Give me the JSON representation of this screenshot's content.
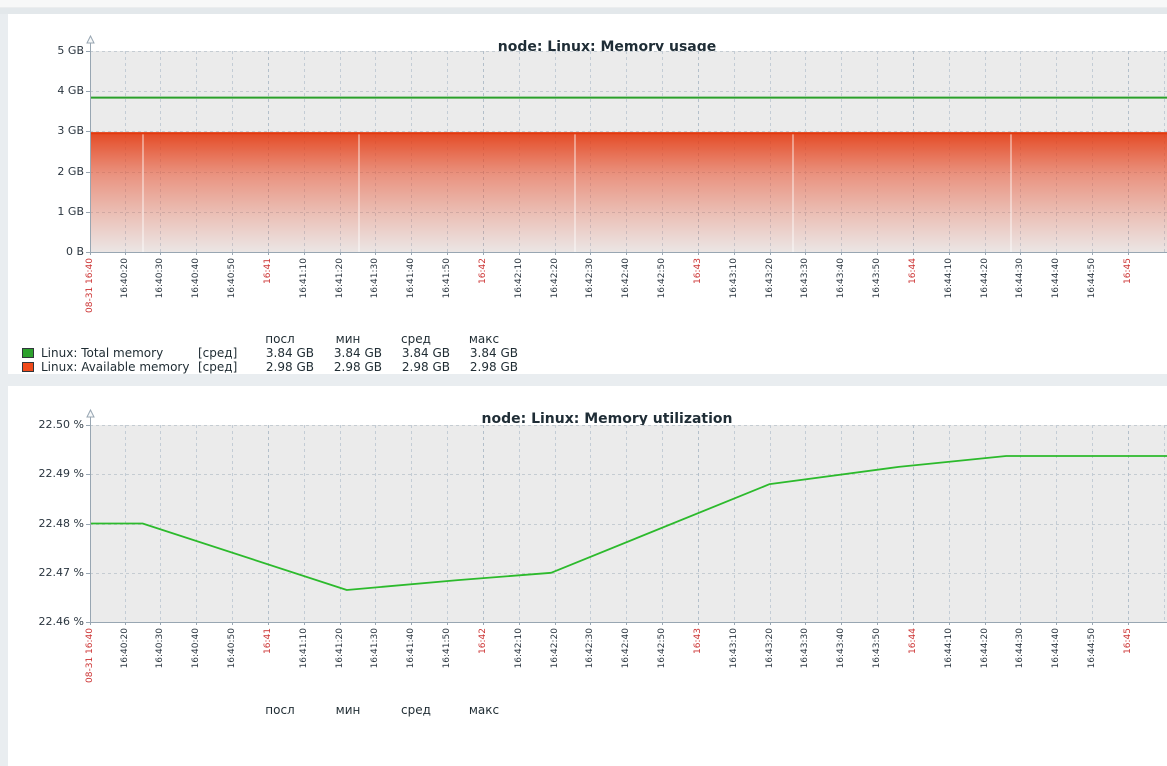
{
  "page": {
    "background": "#e9edf0",
    "panel_background": "#ffffff"
  },
  "colors": {
    "plot_background": "#ebebeb",
    "h_gridline": "#c5ccd2",
    "v_gridline": "#c3ccd5",
    "v_gridline_minute": "#b3bfca",
    "axis": "#98a6b2",
    "tick_text": "#2b3640",
    "tick_text_red": "#cc3333",
    "total_memory_green": "#2aa02a",
    "available_memory_red": "#e23a10",
    "utilization_green": "#2cba2c"
  },
  "chart_data": [
    {
      "type": "line",
      "title": "node: Linux: Memory usage",
      "y_unit": "bytes",
      "ylim_gb": [
        0,
        5
      ],
      "grid": true,
      "legend_position": "bottom",
      "y_tick_labels": [
        "5 GB",
        "4 GB",
        "3 GB",
        "2 GB",
        "1 GB",
        "0 B"
      ],
      "x_tick_labels": [
        {
          "t": "08-31 16:40",
          "red": true
        },
        {
          "t": "16:40:20",
          "red": false
        },
        {
          "t": "16:40:30",
          "red": false
        },
        {
          "t": "16:40:40",
          "red": false
        },
        {
          "t": "16:40:50",
          "red": false
        },
        {
          "t": "16:41",
          "red": true
        },
        {
          "t": "16:41:10",
          "red": false
        },
        {
          "t": "16:41:20",
          "red": false
        },
        {
          "t": "16:41:30",
          "red": false
        },
        {
          "t": "16:41:40",
          "red": false
        },
        {
          "t": "16:41:50",
          "red": false
        },
        {
          "t": "16:42",
          "red": true
        },
        {
          "t": "16:42:10",
          "red": false
        },
        {
          "t": "16:42:20",
          "red": false
        },
        {
          "t": "16:42:30",
          "red": false
        },
        {
          "t": "16:42:40",
          "red": false
        },
        {
          "t": "16:42:50",
          "red": false
        },
        {
          "t": "16:43",
          "red": true
        },
        {
          "t": "16:43:10",
          "red": false
        },
        {
          "t": "16:43:20",
          "red": false
        },
        {
          "t": "16:43:30",
          "red": false
        },
        {
          "t": "16:43:40",
          "red": false
        },
        {
          "t": "16:43:50",
          "red": false
        },
        {
          "t": "16:44",
          "red": true
        },
        {
          "t": "16:44:10",
          "red": false
        },
        {
          "t": "16:44:20",
          "red": false
        },
        {
          "t": "16:44:30",
          "red": false
        },
        {
          "t": "16:44:40",
          "red": false
        },
        {
          "t": "16:44:50",
          "red": false
        },
        {
          "t": "16:45",
          "red": true
        }
      ],
      "series": [
        {
          "name": "Linux: Total memory",
          "agg": "[сред]",
          "color": "#2aa02a",
          "style": "line",
          "constant_value_gb": 3.84
        },
        {
          "name": "Linux: Available memory",
          "agg": "[сред]",
          "color": "#e23a10",
          "style": "gradient_area",
          "constant_value_gb": 2.98
        }
      ],
      "legend": {
        "headers": [
          "посл",
          "мин",
          "сред",
          "макс"
        ],
        "rows": [
          {
            "color": "#2da12d",
            "label": "Linux: Total memory",
            "func": "[сред]",
            "values": [
              "3.84 GB",
              "3.84 GB",
              "3.84 GB",
              "3.84 GB"
            ]
          },
          {
            "color": "#ef4a1b",
            "label": "Linux: Available memory",
            "func": "[сред]",
            "values": [
              "2.98 GB",
              "2.98 GB",
              "2.98 GB",
              "2.98 GB"
            ]
          }
        ]
      }
    },
    {
      "type": "line",
      "title": "node: Linux: Memory utilization",
      "y_unit": "%",
      "ylim": [
        22.46,
        22.5
      ],
      "grid": true,
      "legend_position": "bottom",
      "y_tick_labels": [
        "22.50 %",
        "22.49 %",
        "22.48 %",
        "22.47 %",
        "22.46 %"
      ],
      "x_tick_labels": [
        {
          "t": "08-31 16:40",
          "red": true
        },
        {
          "t": "16:40:20",
          "red": false
        },
        {
          "t": "16:40:30",
          "red": false
        },
        {
          "t": "16:40:40",
          "red": false
        },
        {
          "t": "16:40:50",
          "red": false
        },
        {
          "t": "16:41",
          "red": true
        },
        {
          "t": "16:41:10",
          "red": false
        },
        {
          "t": "16:41:20",
          "red": false
        },
        {
          "t": "16:41:30",
          "red": false
        },
        {
          "t": "16:41:40",
          "red": false
        },
        {
          "t": "16:41:50",
          "red": false
        },
        {
          "t": "16:42",
          "red": true
        },
        {
          "t": "16:42:10",
          "red": false
        },
        {
          "t": "16:42:20",
          "red": false
        },
        {
          "t": "16:42:30",
          "red": false
        },
        {
          "t": "16:42:40",
          "red": false
        },
        {
          "t": "16:42:50",
          "red": false
        },
        {
          "t": "16:43",
          "red": true
        },
        {
          "t": "16:43:10",
          "red": false
        },
        {
          "t": "16:43:20",
          "red": false
        },
        {
          "t": "16:43:30",
          "red": false
        },
        {
          "t": "16:43:40",
          "red": false
        },
        {
          "t": "16:43:50",
          "red": false
        },
        {
          "t": "16:44",
          "red": true
        },
        {
          "t": "16:44:10",
          "red": false
        },
        {
          "t": "16:44:20",
          "red": false
        },
        {
          "t": "16:44:30",
          "red": false
        },
        {
          "t": "16:44:40",
          "red": false
        },
        {
          "t": "16:44:50",
          "red": false
        },
        {
          "t": "16:45",
          "red": true
        }
      ],
      "series": [
        {
          "name": "Linux: Memory utilization",
          "color": "#2cba2c",
          "style": "line",
          "points": [
            [
              "16:40:10",
              22.48
            ],
            [
              "16:40:25",
              22.48
            ],
            [
              "16:41:22",
              22.4665
            ],
            [
              "16:41:53",
              22.4685
            ],
            [
              "16:42:19",
              22.47
            ],
            [
              "16:43:20",
              22.488
            ],
            [
              "16:43:56",
              22.4915
            ],
            [
              "16:44:26",
              22.4937
            ],
            [
              "16:45:12",
              22.4937
            ]
          ]
        }
      ],
      "legend": {
        "headers": [
          "посл",
          "мин",
          "сред",
          "макс"
        ],
        "rows": []
      }
    }
  ]
}
